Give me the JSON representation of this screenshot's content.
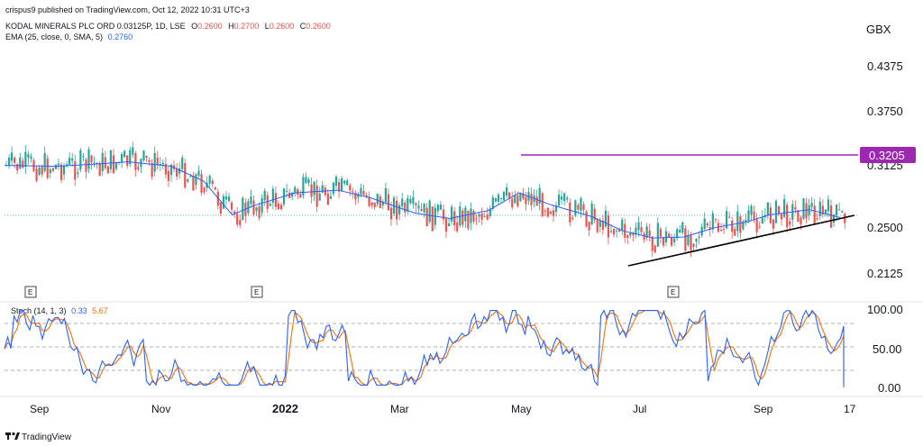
{
  "publisher": "crispus9 published on TradingView.com, Oct 12, 2022 10:31 UTC+3",
  "symbol_line": {
    "name": "KODAL MINERALS PLC ORD 0.03125P, 1D, LSE",
    "o_label": "O",
    "o": "0.2600",
    "h_label": "H",
    "h": "0.2700",
    "l_label": "L",
    "l": "0.2600",
    "c_label": "C",
    "c": "0.2600"
  },
  "ema_line": {
    "name": "EMA (25, close, 0, SMA, 5)",
    "value": "0.2760"
  },
  "stoch_line": {
    "name": "Stoch (14, 1, 3)",
    "k": "0.33",
    "d": "5.67"
  },
  "currency": "GBX",
  "price_ticks": [
    "0.4375",
    "0.3750",
    "0.3125",
    "0.2500",
    "0.2125"
  ],
  "stoch_ticks": [
    "100.00",
    "50.00",
    "0.00"
  ],
  "resistance_label": "0.3205",
  "x_labels": [
    "Sep",
    "Nov",
    "2022",
    "Mar",
    "May",
    "Jul",
    "Sep",
    "17"
  ],
  "event_marker": "E",
  "brand": "TradingView",
  "colors": {
    "up": "#26a69a",
    "down": "#ef5350",
    "ema": "#2962ff",
    "resistance": "#9c27b0",
    "stoch_k": "#2962ff",
    "stoch_d": "#ff6d00"
  },
  "chart_data": {
    "type": "candlestick",
    "title": "KODAL MINERALS PLC ORD 0.03125P, 1D, LSE",
    "ylabel": "GBX",
    "ylim": [
      0.195,
      0.47
    ],
    "x_range": [
      "2021-08-25",
      "2022-10-17"
    ],
    "resistance_level": 0.3205,
    "support_trendline": {
      "from": [
        "2022-06-27",
        0.232
      ],
      "to": [
        "2022-10-14",
        0.264
      ]
    },
    "series": [
      {
        "name": "EMA (25, close, 0, SMA, 5)",
        "points": [
          [
            "2021-08-25",
            0.336
          ],
          [
            "2021-09-20",
            0.335
          ],
          [
            "2021-10-05",
            0.337
          ],
          [
            "2021-10-25",
            0.34
          ],
          [
            "2021-11-15",
            0.335
          ],
          [
            "2021-12-01",
            0.318
          ],
          [
            "2021-12-15",
            0.28
          ],
          [
            "2021-12-25",
            0.29
          ],
          [
            "2022-01-15",
            0.305
          ],
          [
            "2022-02-05",
            0.308
          ],
          [
            "2022-02-20",
            0.3
          ],
          [
            "2022-03-15",
            0.282
          ],
          [
            "2022-04-01",
            0.276
          ],
          [
            "2022-04-20",
            0.285
          ],
          [
            "2022-05-05",
            0.305
          ],
          [
            "2022-05-20",
            0.292
          ],
          [
            "2022-06-10",
            0.278
          ],
          [
            "2022-06-25",
            0.262
          ],
          [
            "2022-07-10",
            0.254
          ],
          [
            "2022-07-25",
            0.255
          ],
          [
            "2022-08-10",
            0.266
          ],
          [
            "2022-08-25",
            0.272
          ],
          [
            "2022-09-05",
            0.28
          ],
          [
            "2022-09-25",
            0.286
          ],
          [
            "2022-10-10",
            0.277
          ]
        ]
      }
    ],
    "stochastic": {
      "name": "Stoch (14, 1, 3)",
      "ylim": [
        0,
        100
      ],
      "levels": [
        80,
        50,
        20
      ],
      "k_last": 0.33,
      "d_last": 5.67
    }
  }
}
